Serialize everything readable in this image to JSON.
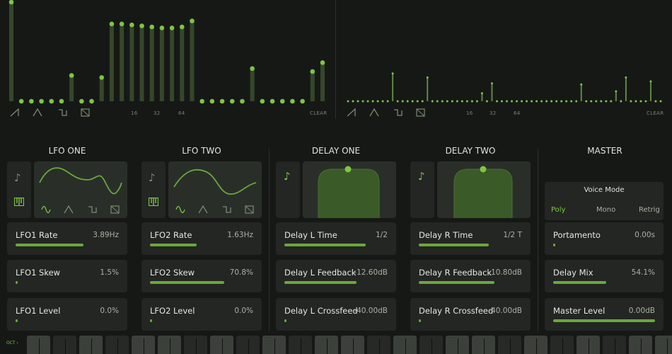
{
  "sequencer_left": {
    "steps": [
      1.0,
      0.0,
      0.0,
      0.0,
      0.0,
      0.0,
      0.26,
      0.0,
      0.0,
      0.24,
      0.78,
      0.78,
      0.77,
      0.76,
      0.75,
      0.74,
      0.74,
      0.75,
      0.81,
      0.0,
      0.0,
      0.0,
      0.0,
      0.0,
      0.33,
      0.0,
      0.0,
      0.0,
      0.0,
      0.0,
      0.3,
      0.39
    ],
    "labels": [
      "16",
      "32",
      "64"
    ],
    "clear_label": "CLEAR",
    "wave_icons": [
      "saw-icon",
      "triangle-icon",
      "square-icon",
      "random-icon"
    ]
  },
  "sequencer_right": {
    "steps": [
      0.0,
      0.0,
      0.0,
      0.0,
      0.0,
      0.0,
      0.0,
      0.0,
      0.0,
      0.0,
      0.0,
      0.0,
      0.0,
      0.0,
      0.0,
      0.0,
      0.0,
      0.0,
      0.0,
      0.0,
      0.0,
      0.0,
      0.0,
      0.0,
      0.0,
      0.0,
      0.0,
      0.0,
      0.0,
      0.0,
      0.0,
      0.0,
      0.0,
      0.0,
      0.0,
      0.0,
      0.0,
      0.0,
      0.0,
      0.0,
      0.0,
      0.0,
      0.0,
      0.0,
      0.0,
      0.0,
      0.0,
      0.0,
      0.0,
      0.0,
      0.0,
      0.0,
      0.0,
      0.0,
      0.0,
      0.0,
      0.0,
      0.0,
      0.0,
      0.0,
      0.0,
      0.0,
      0.0,
      0.0
    ],
    "peaks": [
      [
        9,
        0.28
      ],
      [
        16,
        0.24
      ],
      [
        27,
        0.08
      ],
      [
        29,
        0.18
      ],
      [
        47,
        0.17
      ],
      [
        54,
        0.1
      ],
      [
        56,
        0.24
      ],
      [
        61,
        0.2
      ]
    ],
    "labels": [
      "16",
      "32",
      "64"
    ],
    "clear_label": "CLEAR",
    "wave_icons": [
      "saw-icon",
      "triangle-icon",
      "square-icon",
      "random-icon"
    ]
  },
  "sections": {
    "lfo_one": "LFO ONE",
    "lfo_two": "LFO TWO",
    "delay_one": "DELAY ONE",
    "delay_two": "DELAY TWO",
    "master": "MASTER"
  },
  "lfo_one": {
    "rows": [
      {
        "name": "LFO1 Rate",
        "value": "3.89Hz",
        "level": 0.66
      },
      {
        "name": "LFO1 Skew",
        "value": "1.5%",
        "level": 0.02
      },
      {
        "name": "LFO1 Level",
        "value": "0.0%",
        "level": 0.01
      }
    ]
  },
  "lfo_two": {
    "rows": [
      {
        "name": "LFO2 Rate",
        "value": "1.63Hz",
        "level": 0.45
      },
      {
        "name": "LFO2 Skew",
        "value": "70.8%",
        "level": 0.72
      },
      {
        "name": "LFO2 Level",
        "value": "0.0%",
        "level": 0.01
      }
    ]
  },
  "delay_one": {
    "rows": [
      {
        "name": "Delay L Time",
        "value": "1/2",
        "level": 0.79
      },
      {
        "name": "Delay L Feedback",
        "value": "-12.60dB",
        "level": 0.7
      },
      {
        "name": "Delay L Crossfeed",
        "value": "-40.00dB",
        "level": 0.01
      }
    ]
  },
  "delay_two": {
    "rows": [
      {
        "name": "Delay R Time",
        "value": "1/2 T",
        "level": 0.68
      },
      {
        "name": "Delay R Feedback",
        "value": "-10.80dB",
        "level": 0.73
      },
      {
        "name": "Delay R Crossfeed",
        "value": "-40.00dB",
        "level": 0.01
      }
    ]
  },
  "master": {
    "voice_mode_title": "Voice Mode",
    "voice_modes": [
      "Poly",
      "Mono",
      "Retrig"
    ],
    "voice_mode_selected": "Poly",
    "rows": [
      {
        "name": "Portamento",
        "value": "0.00s",
        "level": 0.01
      },
      {
        "name": "Delay Mix",
        "value": "54.1%",
        "level": 0.52
      },
      {
        "name": "Master Level",
        "value": "0.00dB",
        "level": 1.0
      }
    ]
  },
  "keyboard": {
    "octave_label": "OCT ›"
  },
  "colors": {
    "accent": "#7cc644",
    "bar": "#35472a",
    "panel": "#232622",
    "background": "#161816"
  }
}
